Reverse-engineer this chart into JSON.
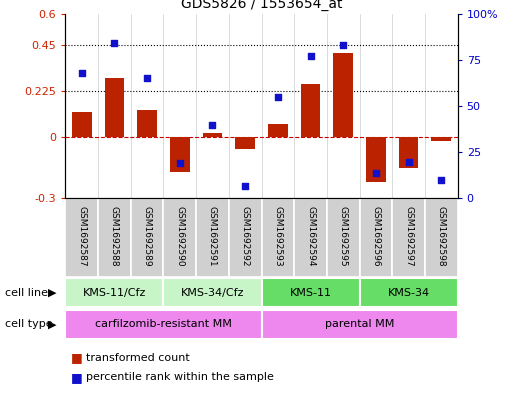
{
  "title": "GDS5826 / 1553654_at",
  "samples": [
    "GSM1692587",
    "GSM1692588",
    "GSM1692589",
    "GSM1692590",
    "GSM1692591",
    "GSM1692592",
    "GSM1692593",
    "GSM1692594",
    "GSM1692595",
    "GSM1692596",
    "GSM1692597",
    "GSM1692598"
  ],
  "transformed_count": [
    0.12,
    0.285,
    0.13,
    -0.17,
    0.02,
    -0.06,
    0.065,
    0.26,
    0.41,
    -0.22,
    -0.15,
    -0.02
  ],
  "percentile_rank": [
    0.68,
    0.84,
    0.65,
    0.19,
    0.4,
    0.07,
    0.55,
    0.77,
    0.83,
    0.14,
    0.2,
    0.1
  ],
  "cell_line_groups": [
    {
      "label": "KMS-11/Cfz",
      "start": 0,
      "end": 3,
      "color": "#c8f5c8"
    },
    {
      "label": "KMS-34/Cfz",
      "start": 3,
      "end": 6,
      "color": "#c8f5c8"
    },
    {
      "label": "KMS-11",
      "start": 6,
      "end": 9,
      "color": "#66dd66"
    },
    {
      "label": "KMS-34",
      "start": 9,
      "end": 12,
      "color": "#66dd66"
    }
  ],
  "cell_type_groups": [
    {
      "label": "carfilzomib-resistant MM",
      "start": 0,
      "end": 6,
      "color": "#ee88ee"
    },
    {
      "label": "parental MM",
      "start": 6,
      "end": 12,
      "color": "#ee88ee"
    }
  ],
  "left_ylim": [
    -0.3,
    0.6
  ],
  "left_yticks": [
    -0.3,
    0.0,
    0.225,
    0.45,
    0.6
  ],
  "left_ytick_labels": [
    "-0.3",
    "0",
    "0.225",
    "0.45",
    "0.6"
  ],
  "right_yticks": [
    0.0,
    0.25,
    0.5,
    0.75,
    1.0
  ],
  "right_ytick_labels": [
    "0",
    "25",
    "50",
    "75",
    "100%"
  ],
  "hlines": [
    0.225,
    0.45
  ],
  "bar_color": "#bb2200",
  "scatter_color": "#1111cc",
  "zero_line_color": "#cc0000",
  "legend_red": "transformed count",
  "legend_blue": "percentile rank within the sample",
  "label_area_color": "#cccccc",
  "box_sep_color": "#ffffff"
}
